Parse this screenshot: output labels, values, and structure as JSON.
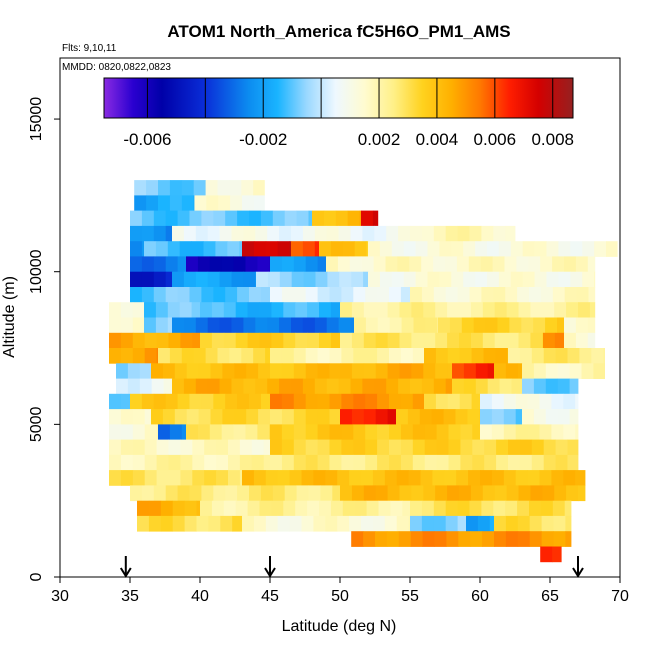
{
  "chart_data": {
    "type": "heatmap",
    "title": "ATOM1 North_America fC5H6O_PM1_AMS",
    "flights_note": "Flts: 9,10,11",
    "dates_note": "MMDD: 0820,0822,0823",
    "xlabel": "Latitude (deg N)",
    "ylabel": "Altitude (m)",
    "xlim": [
      30,
      70
    ],
    "ylim": [
      0,
      17000
    ],
    "x_ticks": [
      "30",
      "35",
      "40",
      "45",
      "50",
      "55",
      "60",
      "65",
      "70"
    ],
    "y_ticks": [
      "0",
      "5000",
      "10000",
      "15000"
    ],
    "colorbar": {
      "range": [
        -0.0075,
        0.0087
      ],
      "tick_labels": [
        "-0.006",
        "-0.002",
        "0.002",
        "0.004",
        "0.006",
        "0.008"
      ],
      "tick_values": [
        -0.006,
        -0.002,
        0.002,
        0.004,
        0.006,
        0.008
      ],
      "line_values": [
        -0.006,
        -0.004,
        -0.002,
        0,
        0.002,
        0.004,
        0.006,
        0.008
      ],
      "stops": [
        {
          "v": -0.0075,
          "c": "#8a2be2"
        },
        {
          "v": -0.0065,
          "c": "#2a00d0"
        },
        {
          "v": -0.0055,
          "c": "#0000a8"
        },
        {
          "v": -0.004,
          "c": "#0a2ed8"
        },
        {
          "v": -0.0025,
          "c": "#0c8cf0"
        },
        {
          "v": -0.0015,
          "c": "#1ab4ff"
        },
        {
          "v": -0.0005,
          "c": "#9ad8ff"
        },
        {
          "v": 0.0005,
          "c": "#eef8ff"
        },
        {
          "v": 0.0015,
          "c": "#fffbd0"
        },
        {
          "v": 0.0025,
          "c": "#fff088"
        },
        {
          "v": 0.0035,
          "c": "#ffd21e"
        },
        {
          "v": 0.0045,
          "c": "#ffb000"
        },
        {
          "v": 0.0055,
          "c": "#ff7800"
        },
        {
          "v": 0.0065,
          "c": "#ff1e00"
        },
        {
          "v": 0.0075,
          "c": "#d40000"
        },
        {
          "v": 0.0087,
          "c": "#962020"
        }
      ]
    },
    "arrows_at_latitude": [
      34.7,
      45.0,
      67.0
    ],
    "grid": {
      "lat_step": 0.85,
      "alt_step": 500,
      "rows": [
        {
          "alt0": 12500,
          "lat": [
            35.3,
            40.4
          ],
          "value": -0.0008
        },
        {
          "alt0": 12500,
          "lat": [
            40.4,
            44.6
          ],
          "value": 0.0014
        },
        {
          "alt0": 12000,
          "lat": [
            35.3,
            39.6
          ],
          "value": -0.0018
        },
        {
          "alt0": 12000,
          "lat": [
            39.6,
            44.6
          ],
          "value": 0.0012
        },
        {
          "alt0": 11500,
          "lat": [
            35.0,
            48.0
          ],
          "value": -0.001
        },
        {
          "alt0": 11500,
          "lat": [
            48.0,
            51.5
          ],
          "value": 0.0042
        },
        {
          "alt0": 11500,
          "lat": [
            51.5,
            52.7
          ],
          "value": 0.0075
        },
        {
          "alt0": 11000,
          "lat": [
            35.0,
            38.0
          ],
          "value": -0.0025
        },
        {
          "alt0": 11000,
          "lat": [
            38.0,
            55.0
          ],
          "value": 0.0008
        },
        {
          "alt0": 11000,
          "lat": [
            55.0,
            62.5
          ],
          "value": 0.0018
        },
        {
          "alt0": 10500,
          "lat": [
            35.0,
            36.0
          ],
          "value": -0.0025
        },
        {
          "alt0": 10500,
          "lat": [
            36.0,
            43.0
          ],
          "value": -0.0012
        },
        {
          "alt0": 10500,
          "lat": [
            43.0,
            46.5
          ],
          "value": 0.0078
        },
        {
          "alt0": 10500,
          "lat": [
            46.5,
            48.5
          ],
          "value": 0.0062
        },
        {
          "alt0": 10500,
          "lat": [
            48.5,
            52.0
          ],
          "value": 0.0038
        },
        {
          "alt0": 10500,
          "lat": [
            52.0,
            69.8
          ],
          "value": 0.0012
        },
        {
          "alt0": 10000,
          "lat": [
            35.0,
            39.0
          ],
          "value": -0.0028
        },
        {
          "alt0": 10000,
          "lat": [
            39.0,
            45.0
          ],
          "value": -0.0058
        },
        {
          "alt0": 10000,
          "lat": [
            45.0,
            49.0
          ],
          "value": -0.0022
        },
        {
          "alt0": 10000,
          "lat": [
            49.0,
            68.2
          ],
          "value": 0.0016
        },
        {
          "alt0": 9500,
          "lat": [
            35.0,
            38.0
          ],
          "value": -0.0045
        },
        {
          "alt0": 9500,
          "lat": [
            38.0,
            44.0
          ],
          "value": -0.002
        },
        {
          "alt0": 9500,
          "lat": [
            44.0,
            52.0
          ],
          "value": -0.0005
        },
        {
          "alt0": 9500,
          "lat": [
            52.0,
            68.2
          ],
          "value": 0.0012
        },
        {
          "alt0": 9000,
          "lat": [
            35.0,
            45.0
          ],
          "value": -0.001
        },
        {
          "alt0": 9000,
          "lat": [
            45.0,
            55.0
          ],
          "value": 0.0004
        },
        {
          "alt0": 9000,
          "lat": [
            55.0,
            68.2
          ],
          "value": 0.0015
        },
        {
          "alt0": 8500,
          "lat": [
            33.5,
            36.0
          ],
          "value": 0.0016
        },
        {
          "alt0": 8500,
          "lat": [
            36.0,
            40.0
          ],
          "value": -0.001
        },
        {
          "alt0": 8500,
          "lat": [
            40.0,
            50.0
          ],
          "value": -0.0014
        },
        {
          "alt0": 8500,
          "lat": [
            50.0,
            68.2
          ],
          "value": 0.0022
        },
        {
          "alt0": 8000,
          "lat": [
            33.5,
            36.0
          ],
          "value": 0.0018
        },
        {
          "alt0": 8000,
          "lat": [
            36.0,
            38.0
          ],
          "value": -0.0008
        },
        {
          "alt0": 8000,
          "lat": [
            38.0,
            51.0
          ],
          "value": -0.003
        },
        {
          "alt0": 8000,
          "lat": [
            51.0,
            57.0
          ],
          "value": 0.0022
        },
        {
          "alt0": 8000,
          "lat": [
            57.0,
            66.0
          ],
          "value": 0.0034
        },
        {
          "alt0": 8000,
          "lat": [
            66.0,
            68.2
          ],
          "value": 0.0012
        },
        {
          "alt0": 7500,
          "lat": [
            33.5,
            40.0
          ],
          "value": 0.0045
        },
        {
          "alt0": 7500,
          "lat": [
            40.0,
            50.0
          ],
          "value": 0.0035
        },
        {
          "alt0": 7500,
          "lat": [
            50.0,
            64.5
          ],
          "value": 0.0028
        },
        {
          "alt0": 7500,
          "lat": [
            64.5,
            66.0
          ],
          "value": 0.0048
        },
        {
          "alt0": 7500,
          "lat": [
            66.0,
            68.2
          ],
          "value": 0.0014
        },
        {
          "alt0": 7000,
          "lat": [
            33.5,
            37.0
          ],
          "value": 0.0048
        },
        {
          "alt0": 7000,
          "lat": [
            37.0,
            45.0
          ],
          "value": 0.003
        },
        {
          "alt0": 7000,
          "lat": [
            45.0,
            56.0
          ],
          "value": 0.002
        },
        {
          "alt0": 7000,
          "lat": [
            56.0,
            62.0
          ],
          "value": 0.004
        },
        {
          "alt0": 7000,
          "lat": [
            62.0,
            68.9
          ],
          "value": 0.0026
        },
        {
          "alt0": 6500,
          "lat": [
            34.0,
            36.5
          ],
          "value": -0.0008
        },
        {
          "alt0": 6500,
          "lat": [
            36.5,
            50.0
          ],
          "value": 0.004
        },
        {
          "alt0": 6500,
          "lat": [
            50.0,
            58.0
          ],
          "value": 0.0044
        },
        {
          "alt0": 6500,
          "lat": [
            58.0,
            61.0
          ],
          "value": 0.0064
        },
        {
          "alt0": 6500,
          "lat": [
            61.0,
            63.0
          ],
          "value": 0.004
        },
        {
          "alt0": 6500,
          "lat": [
            63.0,
            68.9
          ],
          "value": 0.0018
        },
        {
          "alt0": 6000,
          "lat": [
            34.0,
            38.0
          ],
          "value": 0.0006
        },
        {
          "alt0": 6000,
          "lat": [
            38.0,
            58.0
          ],
          "value": 0.0044
        },
        {
          "alt0": 6000,
          "lat": [
            58.0,
            63.0
          ],
          "value": 0.003
        },
        {
          "alt0": 6000,
          "lat": [
            63.0,
            67.0
          ],
          "value": -0.0008
        },
        {
          "alt0": 5500,
          "lat": [
            33.5,
            35.0
          ],
          "value": -0.0006
        },
        {
          "alt0": 5500,
          "lat": [
            35.0,
            45.0
          ],
          "value": 0.0036
        },
        {
          "alt0": 5500,
          "lat": [
            45.0,
            56.0
          ],
          "value": 0.005
        },
        {
          "alt0": 5500,
          "lat": [
            56.0,
            60.0
          ],
          "value": 0.0032
        },
        {
          "alt0": 5500,
          "lat": [
            60.0,
            67.0
          ],
          "value": 0.0008
        },
        {
          "alt0": 5000,
          "lat": [
            33.5,
            36.5
          ],
          "value": 0.0012
        },
        {
          "alt0": 5000,
          "lat": [
            36.5,
            50.0
          ],
          "value": 0.0032
        },
        {
          "alt0": 5000,
          "lat": [
            50.0,
            54.0
          ],
          "value": 0.0068
        },
        {
          "alt0": 5000,
          "lat": [
            54.0,
            60.0
          ],
          "value": 0.004
        },
        {
          "alt0": 5000,
          "lat": [
            60.0,
            63.0
          ],
          "value": -0.001
        },
        {
          "alt0": 5000,
          "lat": [
            63.0,
            67.0
          ],
          "value": 0.0012
        },
        {
          "alt0": 4500,
          "lat": [
            33.5,
            37.0
          ],
          "value": 0.0014
        },
        {
          "alt0": 4500,
          "lat": [
            37.0,
            39.0
          ],
          "value": -0.003
        },
        {
          "alt0": 4500,
          "lat": [
            39.0,
            45.0
          ],
          "value": 0.0026
        },
        {
          "alt0": 4500,
          "lat": [
            45.0,
            60.0
          ],
          "value": 0.0038
        },
        {
          "alt0": 4500,
          "lat": [
            60.0,
            67.0
          ],
          "value": 0.002
        },
        {
          "alt0": 4000,
          "lat": [
            33.5,
            45.0
          ],
          "value": 0.0016
        },
        {
          "alt0": 4000,
          "lat": [
            45.0,
            67.0
          ],
          "value": 0.0034
        },
        {
          "alt0": 3500,
          "lat": [
            33.5,
            45.0
          ],
          "value": 0.002
        },
        {
          "alt0": 3500,
          "lat": [
            45.0,
            67.0
          ],
          "value": 0.0026
        },
        {
          "alt0": 3000,
          "lat": [
            33.5,
            43.0
          ],
          "value": 0.0028
        },
        {
          "alt0": 3000,
          "lat": [
            43.0,
            67.5
          ],
          "value": 0.004
        },
        {
          "alt0": 2500,
          "lat": [
            35.0,
            50.0
          ],
          "value": 0.0026
        },
        {
          "alt0": 2500,
          "lat": [
            50.0,
            67.5
          ],
          "value": 0.0042
        },
        {
          "alt0": 2000,
          "lat": [
            35.5,
            40.0
          ],
          "value": 0.0044
        },
        {
          "alt0": 2000,
          "lat": [
            40.0,
            55.0
          ],
          "value": 0.0022
        },
        {
          "alt0": 2000,
          "lat": [
            55.0,
            66.5
          ],
          "value": 0.003
        },
        {
          "alt0": 1500,
          "lat": [
            35.5,
            43.0
          ],
          "value": 0.003
        },
        {
          "alt0": 1500,
          "lat": [
            43.0,
            55.0
          ],
          "value": 0.0014
        },
        {
          "alt0": 1500,
          "lat": [
            55.0,
            59.0
          ],
          "value": -0.0006
        },
        {
          "alt0": 1500,
          "lat": [
            59.0,
            61.0
          ],
          "value": -0.0018
        },
        {
          "alt0": 1500,
          "lat": [
            61.0,
            66.5
          ],
          "value": 0.003
        },
        {
          "alt0": 1000,
          "lat": [
            50.8,
            66.5
          ],
          "value": 0.005
        },
        {
          "alt0": 500,
          "lat": [
            64.3,
            65.8
          ],
          "value": 0.0068
        }
      ]
    }
  }
}
